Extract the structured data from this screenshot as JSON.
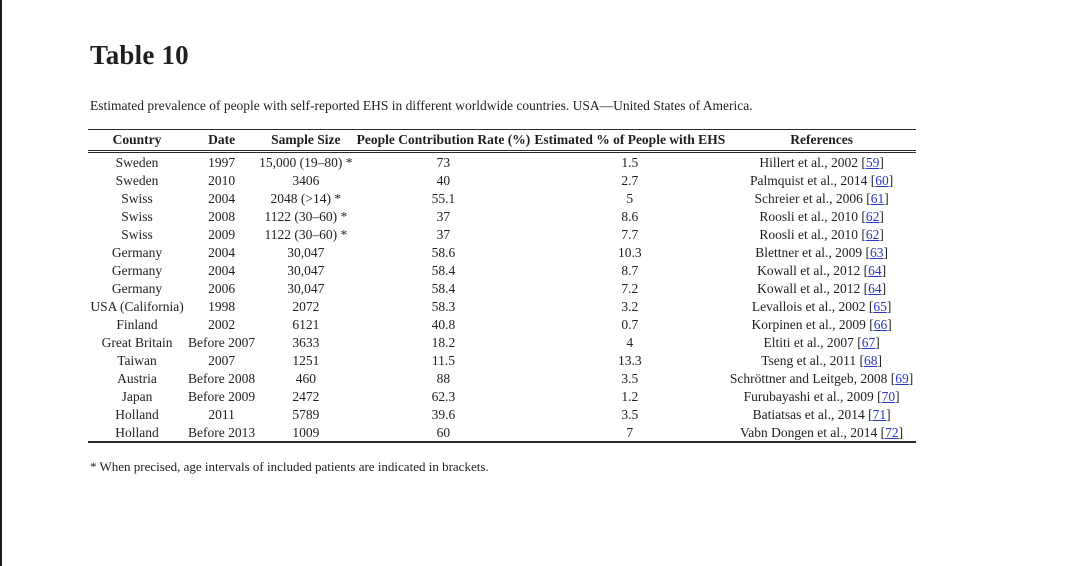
{
  "page": {
    "title": "Table 10",
    "caption": "Estimated prevalence of people with self-reported EHS in different worldwide countries. USA—United States of America.",
    "footnote": "* When precised, age intervals of included patients are indicated in brackets."
  },
  "table": {
    "columns": [
      "Country",
      "Date",
      "Sample Size",
      "People Contribution Rate (%)",
      "Estimated % of People with EHS",
      "References"
    ],
    "ref_brackets": {
      "open": "[",
      "close": "]"
    },
    "rows": [
      {
        "country": "Sweden",
        "date": "1997",
        "sample_size": "15,000 (19–80) *",
        "contribution_rate": "73",
        "estimated_pct": "1.5",
        "ref_text": "Hillert et al., 2002",
        "ref_num": "59"
      },
      {
        "country": "Sweden",
        "date": "2010",
        "sample_size": "3406",
        "contribution_rate": "40",
        "estimated_pct": "2.7",
        "ref_text": "Palmquist et al., 2014",
        "ref_num": "60"
      },
      {
        "country": "Swiss",
        "date": "2004",
        "sample_size": "2048 (>14) *",
        "contribution_rate": "55.1",
        "estimated_pct": "5",
        "ref_text": "Schreier et al., 2006",
        "ref_num": "61"
      },
      {
        "country": "Swiss",
        "date": "2008",
        "sample_size": "1122\n(30–60) *",
        "contribution_rate": "37",
        "estimated_pct": "8.6",
        "ref_text": "Roosli et al., 2010",
        "ref_num": "62"
      },
      {
        "country": "Swiss",
        "date": "2009",
        "sample_size": "1122\n(30–60) *",
        "contribution_rate": "37",
        "estimated_pct": "7.7",
        "ref_text": "Roosli et al., 2010",
        "ref_num": "62"
      },
      {
        "country": "Germany",
        "date": "2004",
        "sample_size": "30,047",
        "contribution_rate": "58.6",
        "estimated_pct": "10.3",
        "ref_text": "Blettner et al., 2009",
        "ref_num": "63"
      },
      {
        "country": "Germany",
        "date": "2004",
        "sample_size": "30,047",
        "contribution_rate": "58.4",
        "estimated_pct": "8.7",
        "ref_text": "Kowall et al., 2012",
        "ref_num": "64"
      },
      {
        "country": "Germany",
        "date": "2006",
        "sample_size": "30,047",
        "contribution_rate": "58.4",
        "estimated_pct": "7.2",
        "ref_text": "Kowall et al., 2012",
        "ref_num": "64"
      },
      {
        "country": "USA (California)",
        "date": "1998",
        "sample_size": "2072",
        "contribution_rate": "58.3",
        "estimated_pct": "3.2",
        "ref_text": "Levallois et al., 2002",
        "ref_num": "65"
      },
      {
        "country": "Finland",
        "date": "2002",
        "sample_size": "6121",
        "contribution_rate": "40.8",
        "estimated_pct": "0.7",
        "ref_text": "Korpinen et al., 2009",
        "ref_num": "66"
      },
      {
        "country": "Great Britain",
        "date": "Before 2007",
        "sample_size": "3633",
        "contribution_rate": "18.2",
        "estimated_pct": "4",
        "ref_text": "Eltiti et al., 2007",
        "ref_num": "67"
      },
      {
        "country": "Taiwan",
        "date": "2007",
        "sample_size": "1251",
        "contribution_rate": "11.5",
        "estimated_pct": "13.3",
        "ref_text": "Tseng et al., 2011",
        "ref_num": "68"
      },
      {
        "country": "Austria",
        "date": "Before 2008",
        "sample_size": "460",
        "contribution_rate": "88",
        "estimated_pct": "3.5",
        "ref_text": "Schröttner and Leitgeb, 2008",
        "ref_num": "69"
      },
      {
        "country": "Japan",
        "date": "Before 2009",
        "sample_size": "2472",
        "contribution_rate": "62.3",
        "estimated_pct": "1.2",
        "ref_text": "Furubayashi et al., 2009",
        "ref_num": "70"
      },
      {
        "country": "Holland",
        "date": "2011",
        "sample_size": "5789",
        "contribution_rate": "39.6",
        "estimated_pct": "3.5",
        "ref_text": "Batiatsas et al., 2014",
        "ref_num": "71"
      },
      {
        "country": "Holland",
        "date": "Before 2013",
        "sample_size": "1009",
        "contribution_rate": "60",
        "estimated_pct": "7",
        "ref_text": "Vabn Dongen et al., 2014",
        "ref_num": "72"
      }
    ]
  },
  "colors": {
    "link_blue": "#2a35c2",
    "text": "#1f1f1f",
    "rule": "#2a2a2a"
  }
}
